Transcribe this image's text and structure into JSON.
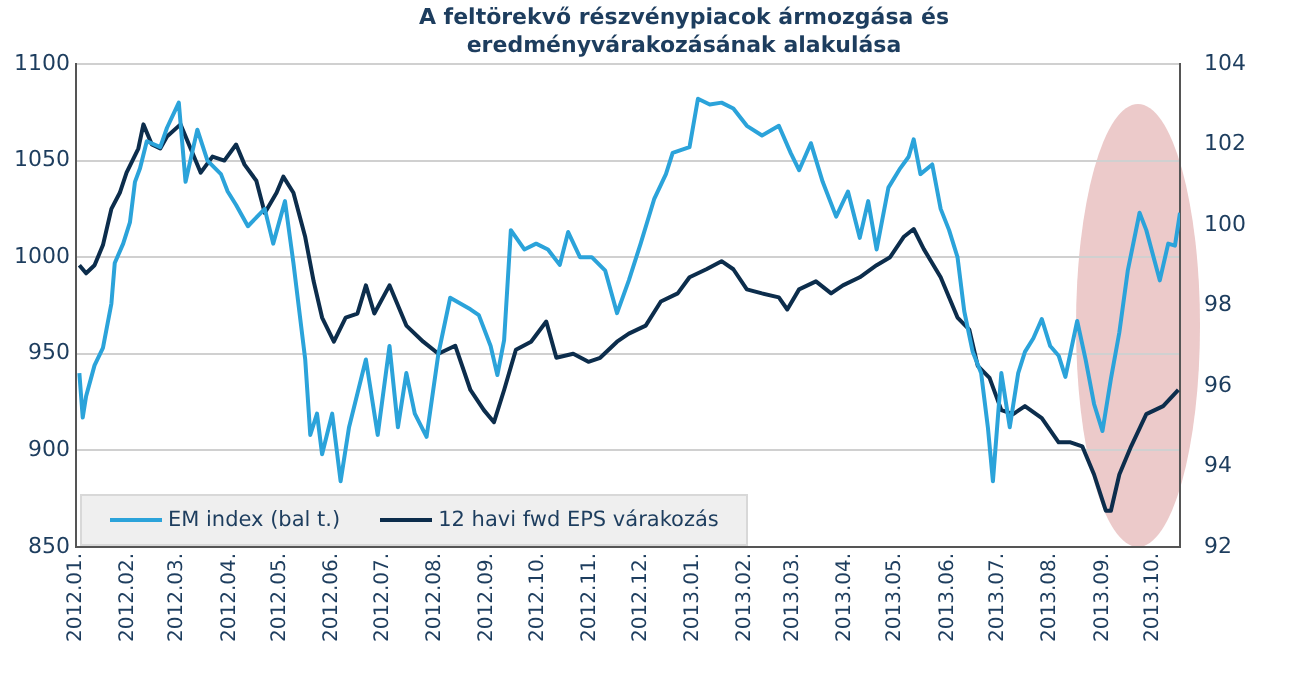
{
  "chart_data": {
    "type": "line",
    "title": "A feltörekvő  részvénypiacok ármozgása és eredményvárakozásának  alakulása",
    "xlim": [
      "2012-01-01",
      "2013-10-17"
    ],
    "xticks": [
      {
        "value": "2012-01",
        "label": "2012.01."
      },
      {
        "value": "2012-02",
        "label": "2012.02."
      },
      {
        "value": "2012-03",
        "label": "2012.03."
      },
      {
        "value": "2012-04",
        "label": "2012.04."
      },
      {
        "value": "2012-05",
        "label": "2012.05."
      },
      {
        "value": "2012-06",
        "label": "2012.06."
      },
      {
        "value": "2012-07",
        "label": "2012.07."
      },
      {
        "value": "2012-08",
        "label": "2012.08."
      },
      {
        "value": "2012-09",
        "label": "2012.09."
      },
      {
        "value": "2012-10",
        "label": "2012.10."
      },
      {
        "value": "2012-11",
        "label": "2012.11."
      },
      {
        "value": "2012-12",
        "label": "2012.12."
      },
      {
        "value": "2013-01",
        "label": "2013.01."
      },
      {
        "value": "2013-02",
        "label": "2013.02."
      },
      {
        "value": "2013-03",
        "label": "2013.03."
      },
      {
        "value": "2013-04",
        "label": "2013.04."
      },
      {
        "value": "2013-05",
        "label": "2013.05."
      },
      {
        "value": "2013-06",
        "label": "2013.06."
      },
      {
        "value": "2013-07",
        "label": "2013.07."
      },
      {
        "value": "2013-08",
        "label": "2013.08."
      },
      {
        "value": "2013-09",
        "label": "2013.09."
      },
      {
        "value": "2013-10",
        "label": "2013.10."
      }
    ],
    "ylim": [
      850,
      1100
    ],
    "yticks": [
      850,
      900,
      950,
      1000,
      1050,
      1100
    ],
    "y2lim": [
      92,
      104
    ],
    "y2ticks": [
      92,
      94,
      96,
      98,
      100,
      102,
      104
    ],
    "grid": "y",
    "legend": "bottom left",
    "marker": "none",
    "line_style": "solid",
    "series": [
      {
        "name": "EM index (bal t.)",
        "color": "#2ba3da",
        "x": [
          "2012-01-03",
          "2012-01-05",
          "2012-01-07",
          "2012-01-12",
          "2012-01-17",
          "2012-01-22",
          "2012-01-24",
          "2012-01-29",
          "2012-02-02",
          "2012-02-05",
          "2012-02-08",
          "2012-02-12",
          "2012-02-20",
          "2012-02-24",
          "2012-03-02",
          "2012-03-06",
          "2012-03-13",
          "2012-03-19",
          "2012-03-27",
          "2012-03-31",
          "2012-04-05",
          "2012-04-12",
          "2012-04-22",
          "2012-04-27",
          "2012-05-04",
          "2012-05-09",
          "2012-05-16",
          "2012-05-19",
          "2012-05-23",
          "2012-05-26",
          "2012-06-01",
          "2012-06-06",
          "2012-06-11",
          "2012-06-21",
          "2012-06-28",
          "2012-07-05",
          "2012-07-10",
          "2012-07-15",
          "2012-07-20",
          "2012-07-27",
          "2012-08-03",
          "2012-08-10",
          "2012-08-22",
          "2012-08-27",
          "2012-09-03",
          "2012-09-07",
          "2012-09-11",
          "2012-09-15",
          "2012-09-23",
          "2012-09-30",
          "2012-10-07",
          "2012-10-14",
          "2012-10-19",
          "2012-10-26",
          "2012-11-02",
          "2012-11-10",
          "2012-11-17",
          "2012-11-24",
          "2012-12-01",
          "2012-12-09",
          "2012-12-16",
          "2012-12-20",
          "2012-12-30",
          "2013-01-04",
          "2013-01-11",
          "2013-01-18",
          "2013-01-25",
          "2013-02-02",
          "2013-02-11",
          "2013-02-21",
          "2013-02-28",
          "2013-03-05",
          "2013-03-12",
          "2013-03-19",
          "2013-03-27",
          "2013-04-03",
          "2013-04-10",
          "2013-04-15",
          "2013-04-20",
          "2013-04-27",
          "2013-05-04",
          "2013-05-09",
          "2013-05-12",
          "2013-05-16",
          "2013-05-23",
          "2013-05-28",
          "2013-06-02",
          "2013-06-07",
          "2013-06-11",
          "2013-06-16",
          "2013-06-21",
          "2013-06-25",
          "2013-06-28",
          "2013-07-03",
          "2013-07-08",
          "2013-07-13",
          "2013-07-17",
          "2013-07-22",
          "2013-07-27",
          "2013-08-01",
          "2013-08-06",
          "2013-08-10",
          "2013-08-17",
          "2013-08-22",
          "2013-08-27",
          "2013-09-01",
          "2013-09-06",
          "2013-09-11",
          "2013-09-16",
          "2013-09-23",
          "2013-09-27",
          "2013-10-05",
          "2013-10-10",
          "2013-10-14",
          "2013-10-17"
        ],
        "values": [
          940,
          917,
          928,
          944,
          953,
          976,
          997,
          1007,
          1018,
          1039,
          1046,
          1060,
          1057,
          1067,
          1080,
          1039,
          1066,
          1050,
          1043,
          1034,
          1027,
          1016,
          1025,
          1007,
          1029,
          997,
          947,
          908,
          919,
          898,
          919,
          884,
          912,
          947,
          908,
          954,
          912,
          940,
          919,
          907,
          950,
          979,
          973,
          970,
          954,
          939,
          957,
          1014,
          1004,
          1007,
          1004,
          996,
          1013,
          1000,
          1000,
          993,
          971,
          988,
          1007,
          1030,
          1043,
          1054,
          1057,
          1082,
          1079,
          1080,
          1077,
          1068,
          1063,
          1068,
          1054,
          1045,
          1059,
          1039,
          1021,
          1034,
          1010,
          1029,
          1004,
          1036,
          1046,
          1052,
          1061,
          1043,
          1048,
          1025,
          1014,
          1000,
          972,
          951,
          940,
          912,
          884,
          940,
          912,
          940,
          951,
          958,
          968,
          954,
          949,
          938,
          967,
          947,
          924,
          910,
          937,
          961,
          993,
          1023,
          1014,
          988,
          1007,
          1006,
          1023
        ]
      },
      {
        "name": "12 havi fwd EPS várakozás",
        "color": "#0c2d4c",
        "axis": "y2",
        "x": [
          "2012-01-03",
          "2012-01-07",
          "2012-01-12",
          "2012-01-17",
          "2012-01-22",
          "2012-01-27",
          "2012-01-31",
          "2012-02-07",
          "2012-02-10",
          "2012-02-15",
          "2012-02-20",
          "2012-02-24",
          "2012-03-03",
          "2012-03-10",
          "2012-03-15",
          "2012-03-22",
          "2012-03-29",
          "2012-04-05",
          "2012-04-10",
          "2012-04-17",
          "2012-04-22",
          "2012-04-29",
          "2012-05-03",
          "2012-05-09",
          "2012-05-16",
          "2012-05-21",
          "2012-05-26",
          "2012-06-02",
          "2012-06-09",
          "2012-06-16",
          "2012-06-21",
          "2012-06-26",
          "2012-07-05",
          "2012-07-15",
          "2012-07-25",
          "2012-08-03",
          "2012-08-13",
          "2012-08-22",
          "2012-08-30",
          "2012-09-05",
          "2012-09-11",
          "2012-09-18",
          "2012-09-27",
          "2012-10-06",
          "2012-10-12",
          "2012-10-22",
          "2012-10-31",
          "2012-11-07",
          "2012-11-17",
          "2012-11-24",
          "2012-12-04",
          "2012-12-13",
          "2012-12-23",
          "2012-12-30",
          "2013-01-09",
          "2013-01-18",
          "2013-01-25",
          "2013-02-02",
          "2013-02-11",
          "2013-02-21",
          "2013-02-26",
          "2013-03-05",
          "2013-03-15",
          "2013-03-24",
          "2013-03-31",
          "2013-04-10",
          "2013-04-20",
          "2013-04-28",
          "2013-05-06",
          "2013-05-12",
          "2013-05-18",
          "2013-05-28",
          "2013-06-07",
          "2013-06-14",
          "2013-06-19",
          "2013-06-26",
          "2013-07-03",
          "2013-07-10",
          "2013-07-17",
          "2013-07-27",
          "2013-08-06",
          "2013-08-13",
          "2013-08-20",
          "2013-08-27",
          "2013-09-03",
          "2013-09-06",
          "2013-09-11",
          "2013-09-18",
          "2013-09-27",
          "2013-10-07",
          "2013-10-16"
        ],
        "values": [
          99.0,
          98.8,
          99.0,
          99.5,
          100.4,
          100.8,
          101.3,
          101.9,
          102.5,
          102.0,
          101.9,
          102.2,
          102.5,
          101.8,
          101.3,
          101.7,
          101.6,
          102.0,
          101.5,
          101.1,
          100.3,
          100.8,
          101.2,
          100.8,
          99.7,
          98.6,
          97.7,
          97.1,
          97.7,
          97.8,
          98.5,
          97.8,
          98.5,
          97.5,
          97.1,
          96.8,
          97.0,
          95.9,
          95.4,
          95.1,
          95.9,
          96.9,
          97.1,
          97.6,
          96.7,
          96.8,
          96.6,
          96.7,
          97.1,
          97.3,
          97.5,
          98.1,
          98.3,
          98.7,
          98.9,
          99.1,
          98.9,
          98.4,
          98.3,
          98.2,
          97.9,
          98.4,
          98.6,
          98.3,
          98.5,
          98.7,
          99.0,
          99.2,
          99.7,
          99.9,
          99.4,
          98.7,
          97.7,
          97.4,
          96.5,
          96.2,
          95.4,
          95.3,
          95.5,
          95.2,
          94.6,
          94.6,
          94.5,
          93.8,
          92.9,
          92.9,
          93.8,
          94.5,
          95.3,
          95.5,
          95.9
        ]
      }
    ]
  }
}
